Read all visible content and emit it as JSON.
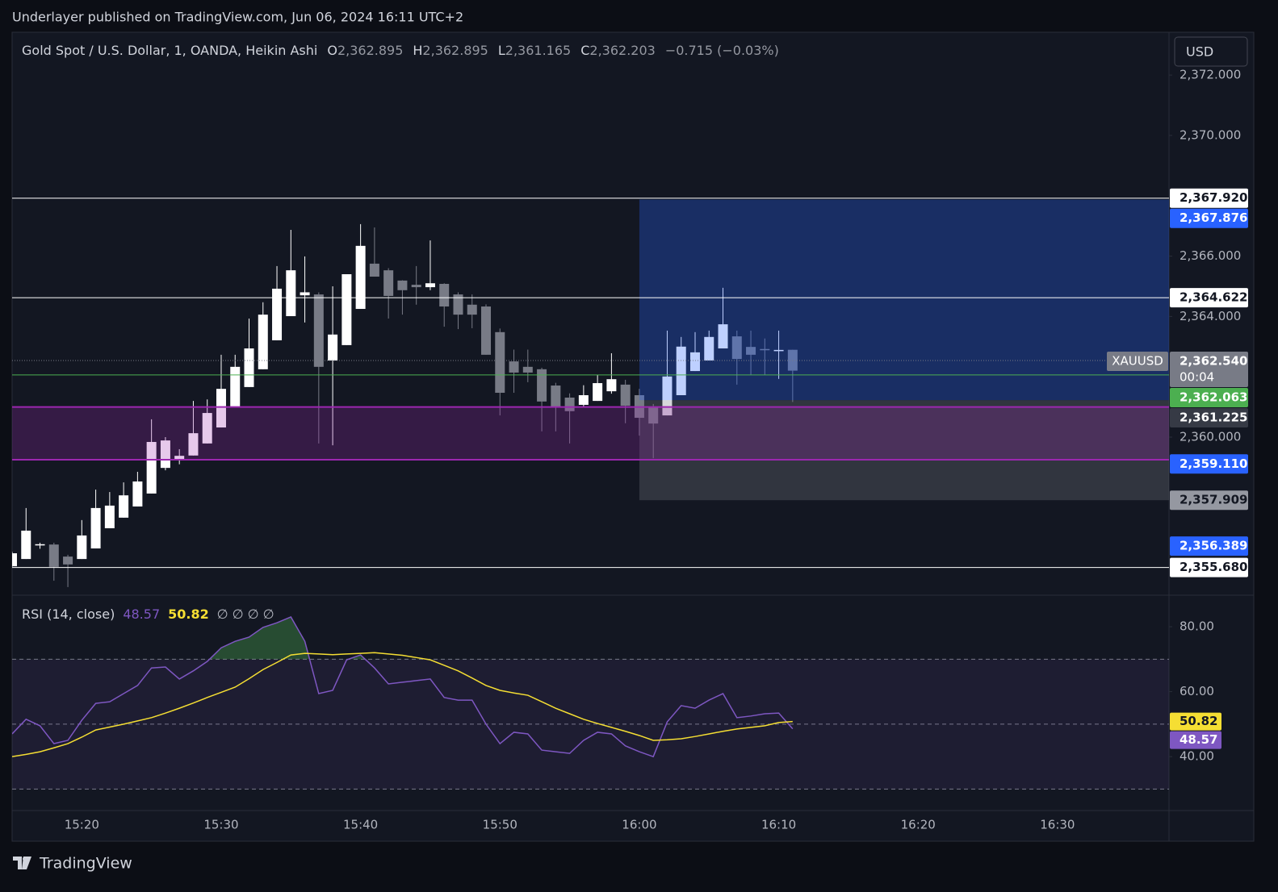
{
  "header": {
    "publisher": "Underlayer published on TradingView.com, Jun 06, 2024 16:11 UTC+2"
  },
  "brand": "TradingView",
  "currency_button": "USD",
  "chart_data": [
    {
      "type": "candlestick",
      "title": "Gold Spot / U.S. Dollar, 1, OANDA, Heikin Ashi",
      "ohlc_legend": [
        {
          "key": "O",
          "value": 2362.895,
          "label": "2,362.895"
        },
        {
          "key": "H",
          "value": 2362.895,
          "label": "2,362.895"
        },
        {
          "key": "L",
          "value": 2361.165,
          "label": "2,361.165"
        },
        {
          "key": "C",
          "value": 2362.203,
          "label": "2,362.203"
        }
      ],
      "change": "−0.715 (−0.03%)",
      "x": [
        "15:15",
        "15:16",
        "15:17",
        "15:18",
        "15:19",
        "15:20",
        "15:21",
        "15:22",
        "15:23",
        "15:24",
        "15:25",
        "15:26",
        "15:27",
        "15:28",
        "15:29",
        "15:30",
        "15:31",
        "15:32",
        "15:33",
        "15:34",
        "15:35",
        "15:36",
        "15:37",
        "15:38",
        "15:39",
        "15:40",
        "15:41",
        "15:42",
        "15:43",
        "15:44",
        "15:45",
        "15:46",
        "15:47",
        "15:48",
        "15:49",
        "15:50",
        "15:51",
        "15:52",
        "15:53",
        "15:54",
        "15:55",
        "15:56",
        "15:57",
        "15:58",
        "15:59",
        "16:00",
        "16:01",
        "16:02",
        "16:03",
        "16:04",
        "16:05",
        "16:06",
        "16:07",
        "16:08",
        "16:09",
        "16:10",
        "16:11"
      ],
      "open": [
        2355.72,
        2355.96,
        2356.42,
        2356.44,
        2356.04,
        2355.96,
        2356.31,
        2356.98,
        2357.33,
        2357.7,
        2358.13,
        2358.98,
        2359.25,
        2359.39,
        2359.79,
        2360.32,
        2360.99,
        2361.66,
        2362.25,
        2363.21,
        2364.01,
        2364.7,
        2364.73,
        2362.54,
        2363.05,
        2364.25,
        2365.75,
        2365.53,
        2365.19,
        2365.05,
        2364.97,
        2365.08,
        2364.73,
        2364.39,
        2364.33,
        2363.48,
        2362.51,
        2362.33,
        2362.25,
        2361.71,
        2361.31,
        2361.07,
        2361.2,
        2361.52,
        2361.74,
        2361.39,
        2360.99,
        2360.72,
        2361.39,
        2362.19,
        2362.54,
        2362.94,
        2363.34,
        2362.99,
        2362.92,
        2362.86,
        2362.895
      ],
      "high": [
        2356.2,
        2357.65,
        2356.5,
        2356.5,
        2356.1,
        2357.25,
        2358.26,
        2358.18,
        2358.5,
        2358.85,
        2360.59,
        2360.0,
        2359.6,
        2361.2,
        2361.25,
        2362.73,
        2362.73,
        2363.93,
        2364.47,
        2365.67,
        2366.87,
        2365.99,
        2364.8,
        2365.0,
        2365.4,
        2367.06,
        2366.95,
        2365.6,
        2365.2,
        2365.67,
        2366.52,
        2365.1,
        2364.8,
        2364.73,
        2364.4,
        2363.6,
        2362.9,
        2362.9,
        2362.3,
        2361.8,
        2361.45,
        2361.72,
        2362.06,
        2362.78,
        2361.9,
        2361.6,
        2361.1,
        2363.53,
        2363.32,
        2363.48,
        2363.53,
        2364.95,
        2363.53,
        2363.53,
        2363.27,
        2363.53,
        2362.895
      ],
      "low": [
        2355.7,
        2355.96,
        2356.3,
        2355.24,
        2355.03,
        2355.96,
        2356.31,
        2356.98,
        2357.33,
        2357.7,
        2358.13,
        2358.9,
        2359.1,
        2359.39,
        2359.79,
        2360.32,
        2360.99,
        2361.66,
        2362.25,
        2363.21,
        2364.01,
        2363.8,
        2359.79,
        2359.73,
        2363.05,
        2364.25,
        2365.32,
        2363.93,
        2364.06,
        2364.39,
        2364.87,
        2363.66,
        2363.58,
        2363.61,
        2362.73,
        2360.72,
        2361.47,
        2361.82,
        2360.19,
        2360.19,
        2359.79,
        2360.99,
        2361.2,
        2361.44,
        2360.46,
        2360.05,
        2359.3,
        2360.72,
        2361.39,
        2362.19,
        2362.54,
        2362.94,
        2361.74,
        2362.06,
        2362.06,
        2361.93,
        2361.165
      ],
      "close": [
        2356.15,
        2356.9,
        2356.45,
        2355.7,
        2355.78,
        2356.74,
        2357.65,
        2357.73,
        2358.07,
        2358.53,
        2359.84,
        2359.89,
        2359.38,
        2360.13,
        2360.8,
        2361.6,
        2362.33,
        2362.94,
        2364.06,
        2364.92,
        2365.53,
        2364.8,
        2362.33,
        2363.4,
        2365.4,
        2366.34,
        2365.32,
        2364.68,
        2364.87,
        2364.97,
        2365.1,
        2364.33,
        2364.06,
        2364.06,
        2362.73,
        2361.47,
        2362.14,
        2362.14,
        2361.18,
        2360.99,
        2360.86,
        2361.39,
        2361.79,
        2361.92,
        2361.04,
        2360.64,
        2360.45,
        2362.01,
        2363.0,
        2362.81,
        2363.32,
        2363.74,
        2362.59,
        2362.73,
        2362.89,
        2362.89,
        2362.203
      ],
      "up_color": "#ffffff",
      "down_color": "#787b86",
      "xlim": [
        "15:15",
        "16:38"
      ],
      "xticks": [
        "15:20",
        "15:30",
        "15:40",
        "15:50",
        "16:00",
        "16:10",
        "16:20",
        "16:30"
      ],
      "ylim": [
        2354.76,
        2373.42
      ],
      "yticks": [
        {
          "value": 2372,
          "label": "2,372.000"
        },
        {
          "value": 2370,
          "label": "2,370.000"
        },
        {
          "value": 2366,
          "label": "2,366.000"
        },
        {
          "value": 2364,
          "label": "2,364.000"
        },
        {
          "value": 2360,
          "label": "2,360.000"
        }
      ],
      "grid": false,
      "price_labels": [
        {
          "value": 2367.92,
          "label": "2,367.920",
          "bg": "#ffffff",
          "fg": "#131722",
          "line": "#ffffff"
        },
        {
          "value": 2364.622,
          "label": "2,364.622",
          "bg": "#ffffff",
          "fg": "#131722",
          "line": "#ffffff"
        },
        {
          "value": 2362.063,
          "label": "2,362.063",
          "bg": "#4caf50",
          "fg": "#ffffff",
          "line": "#4caf50"
        },
        {
          "value": 2356.389,
          "label": "2,356.389",
          "bg": "#2962ff",
          "fg": "#ffffff"
        },
        {
          "value": 2355.68,
          "label": "2,355.680",
          "bg": "#ffffff",
          "fg": "#131722",
          "line": "#ffffff"
        }
      ],
      "zone": {
        "low": 2359.25,
        "high": 2361.0,
        "color": "#9c27b0"
      },
      "position": {
        "start": "16:00",
        "target": {
          "value": 2367.876,
          "label": "2,367.876"
        },
        "entry": {
          "value": 2361.225,
          "label": "2,361.225"
        },
        "stop_level": {
          "value": 2359.11,
          "label": "2,359.110"
        },
        "stop": {
          "value": 2357.909,
          "label": "2,357.909"
        }
      },
      "last_price": {
        "symbol": "XAUUSD",
        "value": 2362.54,
        "label": "2,362.540",
        "countdown": "00:04"
      }
    },
    {
      "type": "line",
      "title": "RSI (14, close)",
      "legend_extra": "∅  ∅  ∅  ∅",
      "series": [
        {
          "color": "#7e57c2",
          "values": [
            47.0,
            51.5,
            49.5,
            44.0,
            45.0,
            51.2,
            56.4,
            56.9,
            59.4,
            61.9,
            67.3,
            67.6,
            63.9,
            66.4,
            69.3,
            73.5,
            75.5,
            76.8,
            79.8,
            81.2,
            83.0,
            75.5,
            59.4,
            60.4,
            69.8,
            71.3,
            67.3,
            62.4,
            62.9,
            63.4,
            63.9,
            58.2,
            57.4,
            57.4,
            50.0,
            44.0,
            47.5,
            47.0,
            42.0,
            41.5,
            41.0,
            45.0,
            47.5,
            47.0,
            43.3,
            41.5,
            40.0,
            50.7,
            55.7,
            54.9,
            57.4,
            59.4,
            52.0,
            52.5,
            53.2,
            53.4,
            48.57
          ]
        },
        {
          "color": "#f5de33",
          "values": [
            40.0,
            40.7,
            41.5,
            42.7,
            44.0,
            46.0,
            48.2,
            49.1,
            50.0,
            51.0,
            52.0,
            53.4,
            54.9,
            56.5,
            58.2,
            59.8,
            61.4,
            64.0,
            66.8,
            69.0,
            71.3,
            71.8,
            71.6,
            71.4,
            71.6,
            71.8,
            72.0,
            71.6,
            71.2,
            70.5,
            69.8,
            68.1,
            66.4,
            64.2,
            61.9,
            60.4,
            59.6,
            58.9,
            56.9,
            54.9,
            53.2,
            51.5,
            50.2,
            49.0,
            47.8,
            46.5,
            45.0,
            45.2,
            45.5,
            46.2,
            47.0,
            47.8,
            48.5,
            49.0,
            49.5,
            50.5,
            50.82
          ]
        }
      ],
      "ylim": [
        23.4,
        89.7
      ],
      "yticks": [
        {
          "value": 80,
          "label": "80.00"
        },
        {
          "value": 60,
          "label": "60.00"
        },
        {
          "value": 40,
          "label": "40.00"
        }
      ],
      "bands": [
        70,
        50,
        30
      ]
    }
  ]
}
